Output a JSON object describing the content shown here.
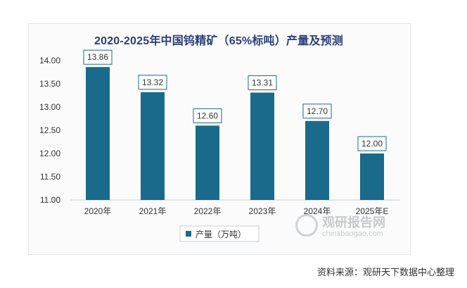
{
  "chart_data": {
    "type": "bar",
    "title": "2020-2025年中国钨精矿（65%标吨）产量及预测",
    "categories": [
      "2020年",
      "2021年",
      "2022年",
      "2023年",
      "2024年",
      "2025年E"
    ],
    "series": [
      {
        "name": "产量（万吨）",
        "values": [
          13.86,
          13.32,
          12.6,
          13.31,
          12.7,
          12.0
        ],
        "color": "#1a6a8c"
      }
    ],
    "data_labels": [
      "13.86",
      "13.32",
      "12.60",
      "13.31",
      "12.70",
      "12.00"
    ],
    "yticks": [
      "11.00",
      "11.50",
      "12.00",
      "12.50",
      "13.00",
      "13.50",
      "14.00"
    ],
    "ylim": [
      11.0,
      14.0
    ],
    "ystep": 0.5,
    "grid": false,
    "legend_position": "bottom-left"
  },
  "watermark": {
    "brand": "观研报告网",
    "site": "chinabaogao.com"
  },
  "source_text": "资料来源：观研天下数据中心整理"
}
